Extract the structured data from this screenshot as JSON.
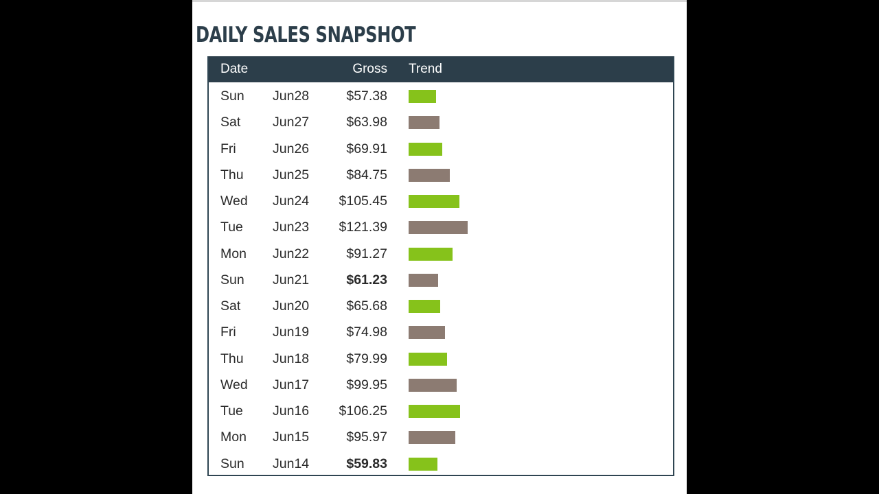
{
  "title": "DAILY SALES SNAPSHOT",
  "colors": {
    "header_bg": "#2c3e4a",
    "bar_green": "#86c21b",
    "bar_taupe": "#8c7b72"
  },
  "table": {
    "columns": [
      "Date",
      "Gross",
      "Trend"
    ],
    "rows": [
      {
        "day": "Sun",
        "date": "Jun28",
        "gross": "$57.38",
        "bold": false,
        "color": "green"
      },
      {
        "day": "Sat",
        "date": "Jun27",
        "gross": "$63.98",
        "bold": false,
        "color": "taupe"
      },
      {
        "day": "Fri",
        "date": "Jun26",
        "gross": "$69.91",
        "bold": false,
        "color": "green"
      },
      {
        "day": "Thu",
        "date": "Jun25",
        "gross": "$84.75",
        "bold": false,
        "color": "taupe"
      },
      {
        "day": "Wed",
        "date": "Jun24",
        "gross": "$105.45",
        "bold": false,
        "color": "green"
      },
      {
        "day": "Tue",
        "date": "Jun23",
        "gross": "$121.39",
        "bold": false,
        "color": "taupe"
      },
      {
        "day": "Mon",
        "date": "Jun22",
        "gross": "$91.27",
        "bold": false,
        "color": "green"
      },
      {
        "day": "Sun",
        "date": "Jun21",
        "gross": "$61.23",
        "bold": true,
        "color": "taupe"
      },
      {
        "day": "Sat",
        "date": "Jun20",
        "gross": "$65.68",
        "bold": false,
        "color": "green"
      },
      {
        "day": "Fri",
        "date": "Jun19",
        "gross": "$74.98",
        "bold": false,
        "color": "taupe"
      },
      {
        "day": "Thu",
        "date": "Jun18",
        "gross": "$79.99",
        "bold": false,
        "color": "green"
      },
      {
        "day": "Wed",
        "date": "Jun17",
        "gross": "$99.95",
        "bold": false,
        "color": "taupe"
      },
      {
        "day": "Tue",
        "date": "Jun16",
        "gross": "$106.25",
        "bold": false,
        "color": "green"
      },
      {
        "day": "Mon",
        "date": "Jun15",
        "gross": "$95.97",
        "bold": false,
        "color": "taupe"
      },
      {
        "day": "Sun",
        "date": "Jun14",
        "gross": "$59.83",
        "bold": true,
        "color": "green"
      }
    ]
  }
}
